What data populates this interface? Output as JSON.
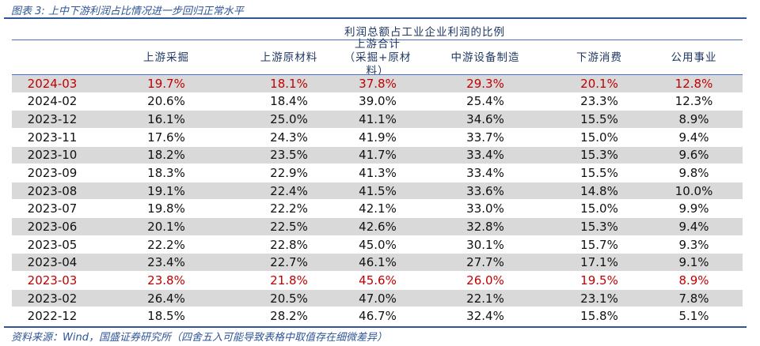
{
  "caption": "图表 3:  上中下游利润占比情况进一步回归正常水平",
  "subheader": "利润总额占工业企业利润的比例",
  "columns": [
    "",
    "上游采掘",
    "上游原材料",
    "上游合计\n（采掘+原材料）",
    "中游设备制造",
    "下游消费",
    "公用事业"
  ],
  "highlight_color": "#c00000",
  "rows": [
    [
      "2024-03",
      "19.7%",
      "18.1%",
      "37.8%",
      "29.3%",
      "20.1%",
      "12.8%"
    ],
    [
      "2024-02",
      "20.6%",
      "18.4%",
      "39.0%",
      "25.4%",
      "23.3%",
      "12.3%"
    ],
    [
      "2023-12",
      "16.1%",
      "25.0%",
      "41.1%",
      "34.6%",
      "15.5%",
      "8.9%"
    ],
    [
      "2023-11",
      "17.6%",
      "24.3%",
      "41.9%",
      "33.7%",
      "15.0%",
      "9.4%"
    ],
    [
      "2023-10",
      "18.2%",
      "23.5%",
      "41.7%",
      "33.4%",
      "15.3%",
      "9.6%"
    ],
    [
      "2023-09",
      "18.3%",
      "22.9%",
      "41.3%",
      "33.4%",
      "15.5%",
      "9.8%"
    ],
    [
      "2023-08",
      "19.1%",
      "22.4%",
      "41.5%",
      "33.6%",
      "14.8%",
      "10.0%"
    ],
    [
      "2023-07",
      "19.8%",
      "22.2%",
      "42.1%",
      "33.0%",
      "15.0%",
      "9.9%"
    ],
    [
      "2023-06",
      "20.1%",
      "22.5%",
      "42.6%",
      "32.8%",
      "15.3%",
      "9.4%"
    ],
    [
      "2023-05",
      "22.2%",
      "22.8%",
      "45.0%",
      "30.1%",
      "15.7%",
      "9.3%"
    ],
    [
      "2023-04",
      "23.4%",
      "22.7%",
      "46.1%",
      "27.7%",
      "17.1%",
      "9.1%"
    ],
    [
      "2023-03",
      "23.8%",
      "21.8%",
      "45.6%",
      "26.0%",
      "19.5%",
      "8.9%"
    ],
    [
      "2023-02",
      "26.4%",
      "20.5%",
      "47.0%",
      "22.1%",
      "23.1%",
      "7.8%"
    ],
    [
      "2022-12",
      "18.5%",
      "28.2%",
      "46.7%",
      "32.4%",
      "15.8%",
      "5.1%"
    ]
  ],
  "highlighted_rows": [
    "2024-03",
    "2023-03"
  ],
  "source": "资料来源：Wind，国盛证券研究所（四舍五入可能导致表格中取值存在细微差异）"
}
